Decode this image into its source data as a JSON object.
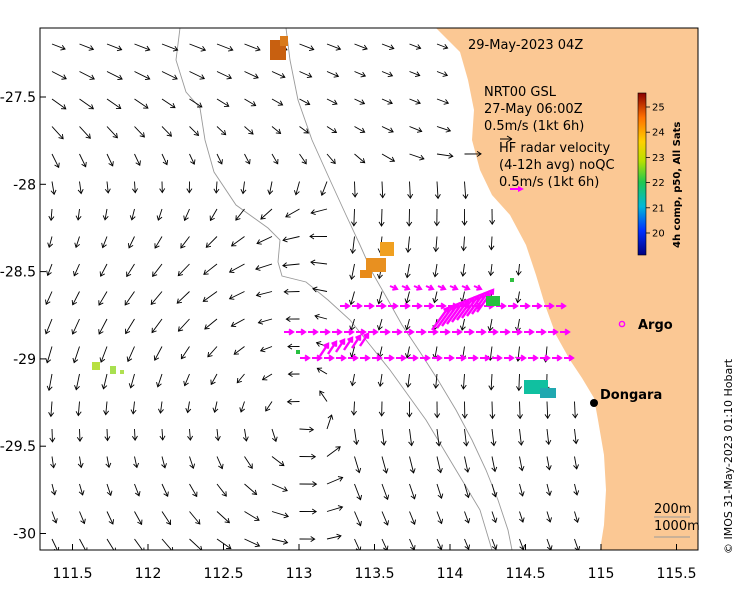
{
  "header": {
    "timestamp": "29-May-2023 04Z"
  },
  "model_legend": {
    "name": "NRT00 GSL",
    "time": "27-May 06:00Z",
    "scale": "0.5m/s (1kt 6h)"
  },
  "radar_legend": {
    "line1": "HF radar velocity",
    "line2": "(4-12h avg) noQC",
    "scale": "0.5m/s (1kt 6h)"
  },
  "colorbar": {
    "label": "4h comp, p50, All Sats",
    "ticks": [
      "20",
      "21",
      "22",
      "23",
      "24",
      "25"
    ]
  },
  "places": {
    "argo": "Argo",
    "dongara": "Dongara"
  },
  "bathy_legend": {
    "contour_200": "200m",
    "contour_1000": "1000m"
  },
  "credit": "© IMOS 31-May-2023 01:10 Hobart",
  "axes": {
    "x_ticks": [
      "111.5",
      "112",
      "112.5",
      "113",
      "113.5",
      "114",
      "114.5",
      "115",
      "115.5"
    ],
    "y_ticks": [
      "-27.5",
      "-28",
      "-28.5",
      "-29",
      "-29.5",
      "-30"
    ],
    "x_values": [
      111.5,
      112,
      112.5,
      113,
      113.5,
      114,
      114.5,
      115,
      115.5
    ],
    "y_values": [
      -27.5,
      -28,
      -28.5,
      -29,
      -29.5,
      -30
    ]
  },
  "colors": {
    "land": "#fbc894",
    "model_arrow": "#000000",
    "radar_arrow": "#ff00ff",
    "contour": "#9a9a9a"
  }
}
